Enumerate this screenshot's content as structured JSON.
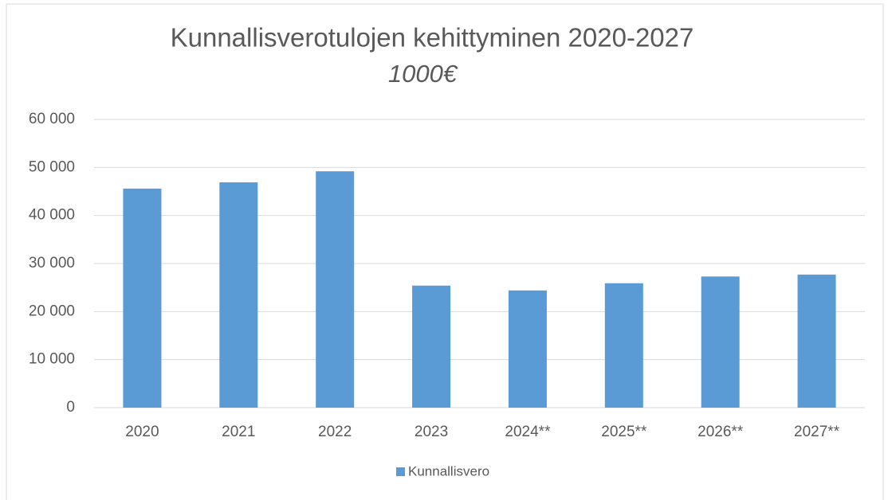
{
  "chart_data": {
    "type": "bar",
    "title": "Kunnallisverotulojen kehittyminen 2020-2027",
    "subtitle": "1000€",
    "categories": [
      "2020",
      "2021",
      "2022",
      "2023",
      "2024**",
      "2025**",
      "2026**",
      "2027**"
    ],
    "series": [
      {
        "name": "Kunnallisvero",
        "color": "#5b9bd5",
        "values": [
          45600,
          46900,
          49200,
          25400,
          24400,
          25900,
          27300,
          27700
        ]
      }
    ],
    "ylim": [
      0,
      60000
    ],
    "yticks": [
      0,
      {
        "value": 10000,
        "label": "10 000"
      },
      {
        "value": 20000,
        "label": "20 000"
      },
      {
        "value": 30000,
        "label": "30 000"
      },
      {
        "value": 40000,
        "label": "40 000"
      },
      {
        "value": 50000,
        "label": "50 000"
      },
      {
        "value": 60000,
        "label": "60 000"
      }
    ],
    "grid": true,
    "legend": "bottom"
  }
}
